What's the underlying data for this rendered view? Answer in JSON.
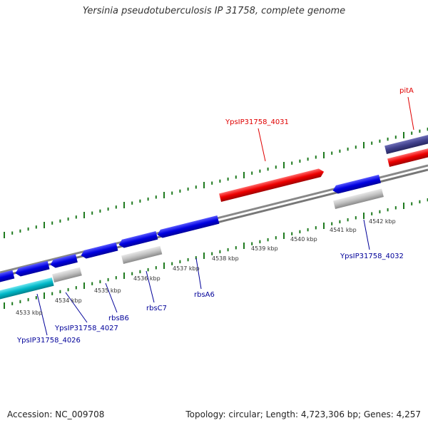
{
  "title": "Yersinia pseudotuberculosis IP 31758, complete genome",
  "accession": "Accession: NC_009708",
  "topology": "Topology: circular; Length: 4,723,306 bp; Genes: 4,257",
  "ticks": [
    "4533 kbp",
    "4534 kbp",
    "4535 kbp",
    "4536 kbp",
    "4537 kbp",
    "4538 kbp",
    "4539 kbp",
    "4540 kbp",
    "4541 kbp",
    "4542 kbp"
  ],
  "genes": [
    {
      "name": "YpsIP31758_4031",
      "color": "#e00000"
    },
    {
      "name": "pitA",
      "color": "#e00000"
    },
    {
      "name": "YpsIP31758_4032",
      "color": "#000099"
    },
    {
      "name": "rbsA6",
      "color": "#000099"
    },
    {
      "name": "rbsC7",
      "color": "#000099"
    },
    {
      "name": "rbsB6",
      "color": "#000099"
    },
    {
      "name": "YpsIP31758_4027",
      "color": "#000099"
    },
    {
      "name": "YpsIP31758_4026",
      "color": "#000099"
    }
  ],
  "colors": {
    "forward_gene": "#e00000",
    "reverse_gene": "#0000dd",
    "rna_gene": "#00b4c8",
    "pseudo_gene": "#b4b4b4",
    "purple_gene": "#3c3c8c",
    "backbone": "#808080",
    "gc_ticks": "#1e7a1e"
  }
}
